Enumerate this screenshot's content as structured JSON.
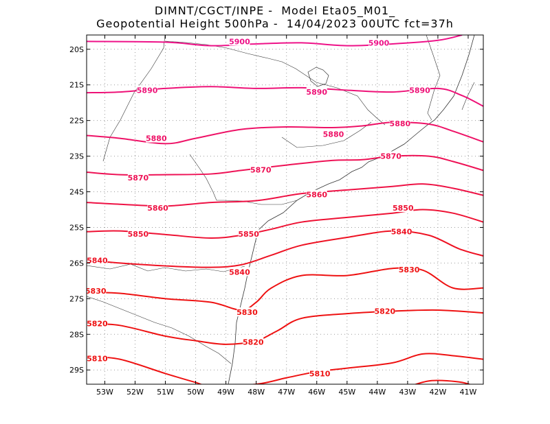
{
  "title": {
    "line1": "DIMNT/CGCT/INPE -  Model Eta05_M01_",
    "line2": "Geopotential Height 500hPa -  14/04/2023 00UTC fct=37h"
  },
  "map": {
    "lon_range": [
      -53.6,
      -40.5
    ],
    "lat_range": [
      -29.4,
      -19.6
    ],
    "grid": "dotted",
    "lon_ticks": [
      {
        "value": -53,
        "label": "53W"
      },
      {
        "value": -52,
        "label": "52W"
      },
      {
        "value": -51,
        "label": "51W"
      },
      {
        "value": -50,
        "label": "50W"
      },
      {
        "value": -49,
        "label": "49W"
      },
      {
        "value": -48,
        "label": "48W"
      },
      {
        "value": -47,
        "label": "47W"
      },
      {
        "value": -46,
        "label": "46W"
      },
      {
        "value": -45,
        "label": "45W"
      },
      {
        "value": -44,
        "label": "44W"
      },
      {
        "value": -43,
        "label": "43W"
      },
      {
        "value": -42,
        "label": "42W"
      },
      {
        "value": -41,
        "label": "41W"
      }
    ],
    "lat_ticks": [
      {
        "value": -20,
        "label": "20S"
      },
      {
        "value": -21,
        "label": "21S"
      },
      {
        "value": -22,
        "label": "22S"
      },
      {
        "value": -23,
        "label": "23S"
      },
      {
        "value": -24,
        "label": "24S"
      },
      {
        "value": -25,
        "label": "25S"
      },
      {
        "value": -26,
        "label": "26S"
      },
      {
        "value": -27,
        "label": "27S"
      },
      {
        "value": -28,
        "label": "28S"
      },
      {
        "value": -29,
        "label": "29S"
      }
    ]
  },
  "contours": [
    {
      "level": "5900",
      "color": "#ee1188",
      "points": [
        [
          -53.6,
          -19.78
        ],
        [
          -51,
          -19.8
        ],
        [
          -49.5,
          -19.9
        ],
        [
          -48,
          -19.85
        ],
        [
          -46.5,
          -19.82
        ],
        [
          -45,
          -19.9
        ],
        [
          -43.5,
          -19.85
        ],
        [
          -42,
          -19.75
        ],
        [
          -41.2,
          -19.6
        ]
      ],
      "labels": [
        [
          -48.55,
          -19.78
        ],
        [
          -43.95,
          -19.82
        ]
      ]
    },
    {
      "level": "5890",
      "color": "#ee1177",
      "points": [
        [
          -53.6,
          -21.22
        ],
        [
          -52.5,
          -21.2
        ],
        [
          -51,
          -21.1
        ],
        [
          -49.5,
          -21.05
        ],
        [
          -48,
          -21.1
        ],
        [
          -46.5,
          -21.08
        ],
        [
          -45,
          -21.15
        ],
        [
          -43.5,
          -21.2
        ],
        [
          -42,
          -21.1
        ],
        [
          -41.2,
          -21.3
        ],
        [
          -40.5,
          -21.6
        ]
      ],
      "labels": [
        [
          -51.6,
          -21.15
        ],
        [
          -46.0,
          -21.2
        ],
        [
          -42.6,
          -21.15
        ]
      ]
    },
    {
      "level": "5880",
      "color": "#ee1166",
      "points": [
        [
          -53.6,
          -22.42
        ],
        [
          -52.5,
          -22.5
        ],
        [
          -51,
          -22.65
        ],
        [
          -50,
          -22.5
        ],
        [
          -48.5,
          -22.25
        ],
        [
          -47,
          -22.18
        ],
        [
          -45.5,
          -22.2
        ],
        [
          -44.5,
          -22.15
        ],
        [
          -43.5,
          -22.05
        ],
        [
          -42.3,
          -22.1
        ],
        [
          -41.5,
          -22.3
        ],
        [
          -40.5,
          -22.6
        ]
      ],
      "labels": [
        [
          -51.3,
          -22.5
        ],
        [
          -45.45,
          -22.38
        ],
        [
          -43.25,
          -22.08
        ]
      ]
    },
    {
      "level": "5870",
      "color": "#ee1155",
      "points": [
        [
          -53.6,
          -23.45
        ],
        [
          -52.5,
          -23.52
        ],
        [
          -51,
          -23.52
        ],
        [
          -49.5,
          -23.5
        ],
        [
          -48.5,
          -23.4
        ],
        [
          -47,
          -23.25
        ],
        [
          -45.5,
          -23.12
        ],
        [
          -44.5,
          -23.1
        ],
        [
          -43.5,
          -23
        ],
        [
          -42.3,
          -23
        ],
        [
          -41.5,
          -23.15
        ],
        [
          -40.5,
          -23.4
        ]
      ],
      "labels": [
        [
          -51.9,
          -23.6
        ],
        [
          -47.85,
          -23.38
        ],
        [
          -43.55,
          -23.0
        ]
      ]
    },
    {
      "level": "5860",
      "color": "#ee1144",
      "points": [
        [
          -53.6,
          -24.3
        ],
        [
          -52.5,
          -24.35
        ],
        [
          -51,
          -24.4
        ],
        [
          -49.5,
          -24.3
        ],
        [
          -48,
          -24.25
        ],
        [
          -46.5,
          -24.05
        ],
        [
          -45,
          -23.95
        ],
        [
          -43.5,
          -23.85
        ],
        [
          -42.5,
          -23.78
        ],
        [
          -41.5,
          -23.9
        ],
        [
          -40.5,
          -24.1
        ]
      ],
      "labels": [
        [
          -51.25,
          -24.45
        ],
        [
          -46.0,
          -24.08
        ]
      ]
    },
    {
      "level": "5850",
      "color": "#ee1133",
      "points": [
        [
          -53.6,
          -25.12
        ],
        [
          -52.5,
          -25.1
        ],
        [
          -51,
          -25.2
        ],
        [
          -49.5,
          -25.3
        ],
        [
          -48.5,
          -25.22
        ],
        [
          -47.5,
          -25.05
        ],
        [
          -46.5,
          -24.85
        ],
        [
          -45,
          -24.72
        ],
        [
          -43.5,
          -24.6
        ],
        [
          -42.5,
          -24.5
        ],
        [
          -41.5,
          -24.6
        ],
        [
          -40.5,
          -24.85
        ]
      ],
      "labels": [
        [
          -51.9,
          -25.18
        ],
        [
          -48.25,
          -25.18
        ],
        [
          -43.15,
          -24.45
        ]
      ]
    },
    {
      "level": "5840",
      "color": "#ee1122",
      "points": [
        [
          -53.6,
          -25.92
        ],
        [
          -52.5,
          -26
        ],
        [
          -51,
          -26.08
        ],
        [
          -49.5,
          -26.12
        ],
        [
          -48.5,
          -26.05
        ],
        [
          -47.5,
          -25.78
        ],
        [
          -46.5,
          -25.5
        ],
        [
          -45,
          -25.28
        ],
        [
          -43.5,
          -25.1
        ],
        [
          -42.3,
          -25.22
        ],
        [
          -41.3,
          -25.6
        ],
        [
          -40.5,
          -25.8
        ]
      ],
      "labels": [
        [
          -53.25,
          -25.92
        ],
        [
          -48.55,
          -26.25
        ],
        [
          -43.2,
          -25.12
        ]
      ]
    },
    {
      "level": "5830",
      "color": "#ee1111",
      "points": [
        [
          -53.6,
          -26.82
        ],
        [
          -52.5,
          -26.85
        ],
        [
          -51,
          -27
        ],
        [
          -49.5,
          -27.1
        ],
        [
          -48.5,
          -27.32
        ],
        [
          -48,
          -27.1
        ],
        [
          -47.5,
          -26.7
        ],
        [
          -46.5,
          -26.35
        ],
        [
          -45,
          -26.35
        ],
        [
          -43.5,
          -26.15
        ],
        [
          -42.5,
          -26.2
        ],
        [
          -41.5,
          -26.7
        ],
        [
          -40.5,
          -26.7
        ]
      ],
      "labels": [
        [
          -53.3,
          -26.78
        ],
        [
          -48.3,
          -27.38
        ],
        [
          -42.95,
          -26.18
        ]
      ]
    },
    {
      "level": "5820",
      "color": "#ee1111",
      "points": [
        [
          -53.6,
          -27.7
        ],
        [
          -52.5,
          -27.75
        ],
        [
          -51,
          -28.05
        ],
        [
          -50,
          -28.18
        ],
        [
          -49,
          -28.28
        ],
        [
          -48,
          -28.18
        ],
        [
          -47.3,
          -27.9
        ],
        [
          -46.5,
          -27.55
        ],
        [
          -45,
          -27.42
        ],
        [
          -43.5,
          -27.35
        ],
        [
          -42,
          -27.32
        ],
        [
          -40.5,
          -27.4
        ]
      ],
      "labels": [
        [
          -53.25,
          -27.7
        ],
        [
          -48.1,
          -28.22
        ],
        [
          -43.75,
          -27.35
        ]
      ]
    },
    {
      "level": "5810",
      "color": "#ee1111",
      "points": [
        [
          -53.6,
          -28.62
        ],
        [
          -52.5,
          -28.7
        ],
        [
          -51,
          -29.1
        ],
        [
          -50,
          -29.35
        ],
        [
          -49.5,
          -29.45
        ],
        [
          -48,
          -29.4
        ],
        [
          -47,
          -29.22
        ],
        [
          -46,
          -29.05
        ],
        [
          -45,
          -28.95
        ],
        [
          -43.5,
          -28.8
        ],
        [
          -42.5,
          -28.55
        ],
        [
          -41.5,
          -28.6
        ],
        [
          -40.5,
          -28.7
        ]
      ],
      "labels": [
        [
          -53.25,
          -28.68
        ],
        [
          -45.9,
          -29.1
        ]
      ]
    },
    {
      "level": "",
      "color": "#ee1111",
      "points": [
        [
          -42.9,
          -29.45
        ],
        [
          -42.2,
          -29.3
        ],
        [
          -41.2,
          -29.35
        ],
        [
          -40.5,
          -29.55
        ]
      ],
      "labels": []
    }
  ]
}
